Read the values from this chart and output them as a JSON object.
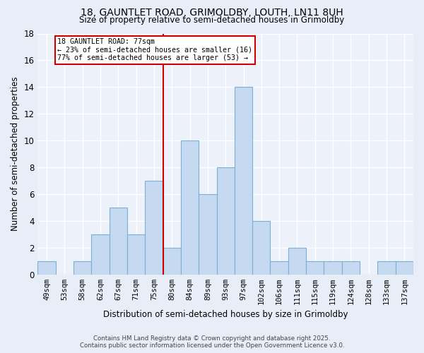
{
  "title1": "18, GAUNTLET ROAD, GRIMOLDBY, LOUTH, LN11 8UH",
  "title2": "Size of property relative to semi-detached houses in Grimoldby",
  "xlabel": "Distribution of semi-detached houses by size in Grimoldby",
  "ylabel": "Number of semi-detached properties",
  "categories": [
    "49sqm",
    "53sqm",
    "58sqm",
    "62sqm",
    "67sqm",
    "71sqm",
    "75sqm",
    "80sqm",
    "84sqm",
    "89sqm",
    "93sqm",
    "97sqm",
    "102sqm",
    "106sqm",
    "111sqm",
    "115sqm",
    "119sqm",
    "124sqm",
    "128sqm",
    "133sqm",
    "137sqm"
  ],
  "values": [
    1,
    0,
    1,
    3,
    5,
    3,
    7,
    2,
    10,
    6,
    8,
    14,
    4,
    1,
    2,
    1,
    1,
    1,
    0,
    1,
    1
  ],
  "bar_color": "#c5d9f0",
  "bar_edge_color": "#7bafd4",
  "subject_bar_index": 6,
  "vline_color": "#cc0000",
  "annotation_title": "18 GAUNTLET ROAD: 77sqm",
  "annotation_line1": "← 23% of semi-detached houses are smaller (16)",
  "annotation_line2": "77% of semi-detached houses are larger (53) →",
  "annotation_box_color": "#cc0000",
  "ylim": [
    0,
    18
  ],
  "yticks": [
    0,
    2,
    4,
    6,
    8,
    10,
    12,
    14,
    16,
    18
  ],
  "footer1": "Contains HM Land Registry data © Crown copyright and database right 2025.",
  "footer2": "Contains public sector information licensed under the Open Government Licence v3.0.",
  "bg_color": "#e8eef8",
  "plot_bg_color": "#edf2fa"
}
